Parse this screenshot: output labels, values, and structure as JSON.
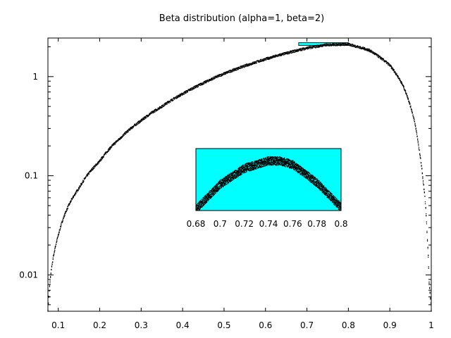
{
  "chart_data": {
    "type": "scatter",
    "title": "Beta distribution (alpha=1, beta=2)",
    "xlabel": "",
    "ylabel": "",
    "x_scale": "linear",
    "y_scale": "log",
    "xlim": [
      0.075,
      1.0
    ],
    "ylim": [
      0.0043,
      2.45
    ],
    "x_ticks": [
      0.1,
      0.2,
      0.3,
      0.4,
      0.5,
      0.6,
      0.7,
      0.8,
      0.9,
      1
    ],
    "x_tick_labels": [
      "0.1",
      "0.2",
      "0.3",
      "0.4",
      "0.5",
      "0.6",
      "0.7",
      "0.8",
      "0.9",
      "1"
    ],
    "y_ticks": [
      0.01,
      0.1,
      1
    ],
    "y_tick_labels": [
      "0.01",
      "0.1",
      "1"
    ],
    "series": [
      {
        "color": "#000000",
        "curve_samples": {
          "x": [
            0.075,
            0.1,
            0.15,
            0.2,
            0.25,
            0.3,
            0.35,
            0.4,
            0.45,
            0.5,
            0.55,
            0.6,
            0.65,
            0.7,
            0.75,
            0.8,
            0.85,
            0.9,
            0.93,
            0.95,
            0.97,
            0.98,
            0.99,
            0.995,
            1.0
          ],
          "y": [
            0.0043,
            0.025,
            0.075,
            0.14,
            0.24,
            0.36,
            0.5,
            0.67,
            0.86,
            1.07,
            1.28,
            1.5,
            1.72,
            1.94,
            2.1,
            2.12,
            1.85,
            1.3,
            0.84,
            0.5,
            0.19,
            0.09,
            0.025,
            0.008,
            0.0043
          ]
        },
        "noise_fraction": 0.03
      }
    ],
    "highlight_box": {
      "x_range": [
        0.68,
        0.8
      ],
      "y_range": [
        2.06,
        2.2
      ],
      "color": "#00ffff"
    },
    "inset": {
      "xlim": [
        0.68,
        0.8
      ],
      "x_ticks": [
        0.68,
        0.7,
        0.72,
        0.74,
        0.76,
        0.78,
        0.8
      ],
      "x_tick_labels": [
        "0.68",
        "0.7",
        "0.72",
        "0.74",
        "0.76",
        "0.78",
        "0.8"
      ],
      "background": "#00ffff",
      "curve_samples": {
        "x": [
          0.68,
          0.7,
          0.72,
          0.74,
          0.75,
          0.76,
          0.78,
          0.8
        ],
        "y_relative": [
          0.02,
          0.42,
          0.68,
          0.8,
          0.8,
          0.74,
          0.45,
          0.05
        ]
      }
    }
  }
}
